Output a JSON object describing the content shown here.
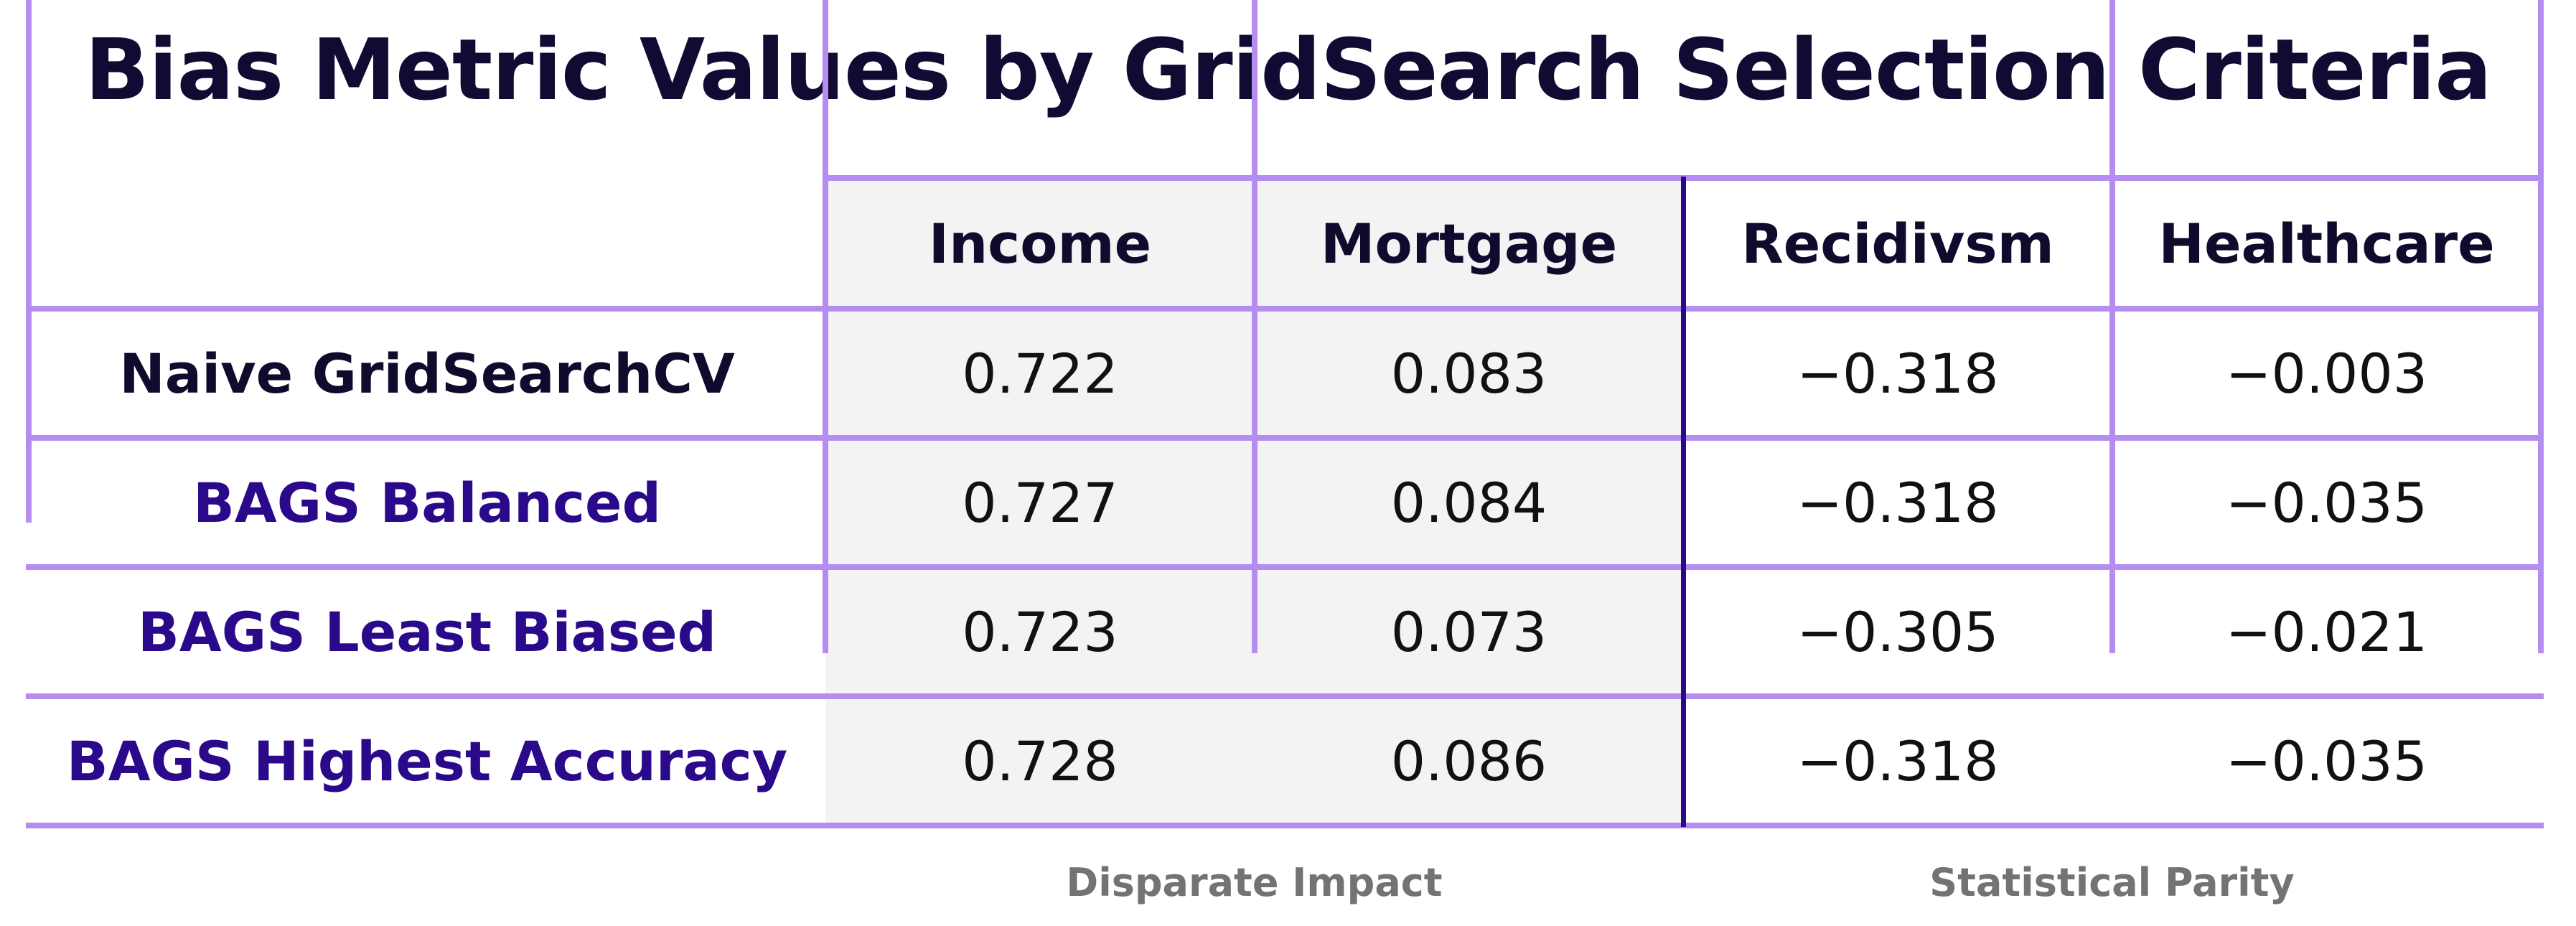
{
  "chart_data": {
    "type": "table",
    "title": "Bias Metric Values by GridSearch Selection Criteria",
    "columns": [
      "Income",
      "Mortgage",
      "Recidivsm",
      "Healthcare"
    ],
    "column_groups": [
      {
        "label": "Disparate Impact",
        "columns": [
          "Income",
          "Mortgage"
        ]
      },
      {
        "label": "Statistical Parity",
        "columns": [
          "Recidivsm",
          "Healthcare"
        ]
      }
    ],
    "rows": [
      {
        "label": "Naive GridSearchCV",
        "values": [
          "0.722",
          "0.083",
          "−0.318",
          "−0.003"
        ]
      },
      {
        "label": "BAGS Balanced",
        "values": [
          "0.727",
          "0.084",
          "−0.318",
          "−0.035"
        ]
      },
      {
        "label": "BAGS Least Biased",
        "values": [
          "0.723",
          "0.073",
          "−0.305",
          "−0.021"
        ]
      },
      {
        "label": "BAGS Highest Accuracy",
        "values": [
          "0.728",
          "0.086",
          "−0.318",
          "−0.035"
        ]
      }
    ],
    "colors": {
      "grid": "#b58cf0",
      "group_divider": "#2a0a8a",
      "shaded_group_fill": "#f3f3f3",
      "bags_row_label": "#2a0a8a",
      "title": "#0f0b33",
      "group_label": "#737373"
    }
  }
}
